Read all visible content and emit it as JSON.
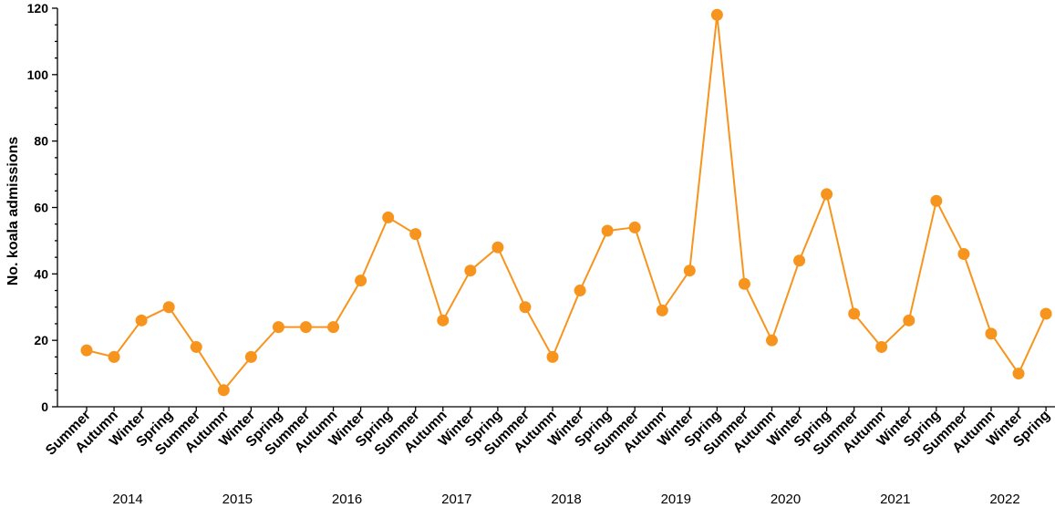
{
  "chart_data": {
    "type": "line",
    "ylabel": "No. koala admissions",
    "ylim": [
      0,
      120
    ],
    "y_ticks": [
      0,
      20,
      40,
      60,
      80,
      100,
      120
    ],
    "y_minor_step": 5,
    "grid": false,
    "colors": {
      "series": "#F7941D",
      "axis": "#000000"
    },
    "categories": [
      "Summer",
      "Autumn",
      "Winter",
      "Spring",
      "Summer",
      "Autumn",
      "Winter",
      "Spring",
      "Summer",
      "Autumn",
      "Winter",
      "Spring",
      "Summer",
      "Autumn",
      "Winter",
      "Spring",
      "Summer",
      "Autumn",
      "Winter",
      "Spring",
      "Summer",
      "Autumn",
      "Winter",
      "Spring",
      "Summer",
      "Autumn",
      "Winter",
      "Spring",
      "Summer",
      "Autumn",
      "Winter",
      "Spring",
      "Summer",
      "Autumn",
      "Winter",
      "Spring"
    ],
    "years": [
      "2014",
      "2015",
      "2016",
      "2017",
      "2018",
      "2019",
      "2020",
      "2021",
      "2022"
    ],
    "series": [
      {
        "values": [
          17,
          15,
          26,
          30,
          18,
          5,
          15,
          24,
          24,
          24,
          38,
          57,
          52,
          26,
          41,
          48,
          30,
          15,
          35,
          53,
          54,
          29,
          41,
          118,
          37,
          20,
          44,
          64,
          28,
          18,
          26,
          62,
          46,
          22,
          10,
          28
        ]
      }
    ]
  }
}
